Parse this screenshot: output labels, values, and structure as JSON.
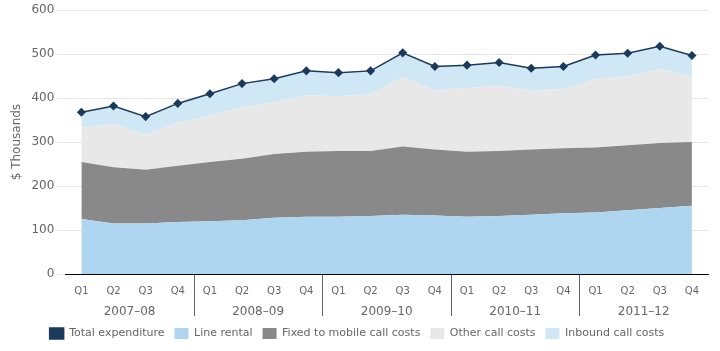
{
  "chart_data": {
    "type": "area",
    "stacked": true,
    "ylabel": "$ Thousands",
    "categories": [
      "Q1",
      "Q2",
      "Q3",
      "Q4",
      "Q1",
      "Q2",
      "Q3",
      "Q4",
      "Q1",
      "Q2",
      "Q3",
      "Q4",
      "Q1",
      "Q2",
      "Q3",
      "Q4",
      "Q1",
      "Q2",
      "Q3",
      "Q4"
    ],
    "year_groups": [
      "2007–08",
      "2008–09",
      "2009–10",
      "2010–11",
      "2011–12"
    ],
    "series": [
      {
        "name": "Line rental",
        "color": "#aed6f1",
        "values": [
          125,
          115,
          115,
          118,
          120,
          122,
          128,
          130,
          130,
          132,
          135,
          133,
          130,
          132,
          135,
          138,
          140,
          145,
          150,
          155
        ]
      },
      {
        "name": "Fixed to mobile call costs",
        "color": "#898989",
        "values": [
          130,
          128,
          122,
          128,
          135,
          140,
          145,
          148,
          150,
          148,
          155,
          150,
          148,
          148,
          148,
          148,
          148,
          148,
          148,
          145
        ]
      },
      {
        "name": "Other call costs",
        "color": "#e8e8e8",
        "values": [
          78,
          98,
          80,
          98,
          105,
          118,
          118,
          128,
          125,
          128,
          158,
          135,
          145,
          148,
          135,
          135,
          155,
          157,
          168,
          148
        ]
      },
      {
        "name": "Inbound call costs",
        "color": "#d0e8f5",
        "values": [
          35,
          41,
          41,
          44,
          50,
          53,
          53,
          56,
          53,
          54,
          55,
          54,
          52,
          53,
          50,
          51,
          55,
          52,
          52,
          49
        ]
      },
      {
        "name": "Total expenditure",
        "type": "line",
        "color": "#1b3a5c",
        "marker": "diamond",
        "values": [
          368,
          382,
          358,
          388,
          410,
          433,
          444,
          462,
          458,
          462,
          503,
          472,
          475,
          481,
          468,
          472,
          498,
          502,
          518,
          497
        ]
      }
    ],
    "ylim": [
      0,
      600
    ],
    "yticks": [
      0,
      100,
      200,
      300,
      400,
      500,
      600
    ],
    "grid": true,
    "legend": "bottom"
  }
}
